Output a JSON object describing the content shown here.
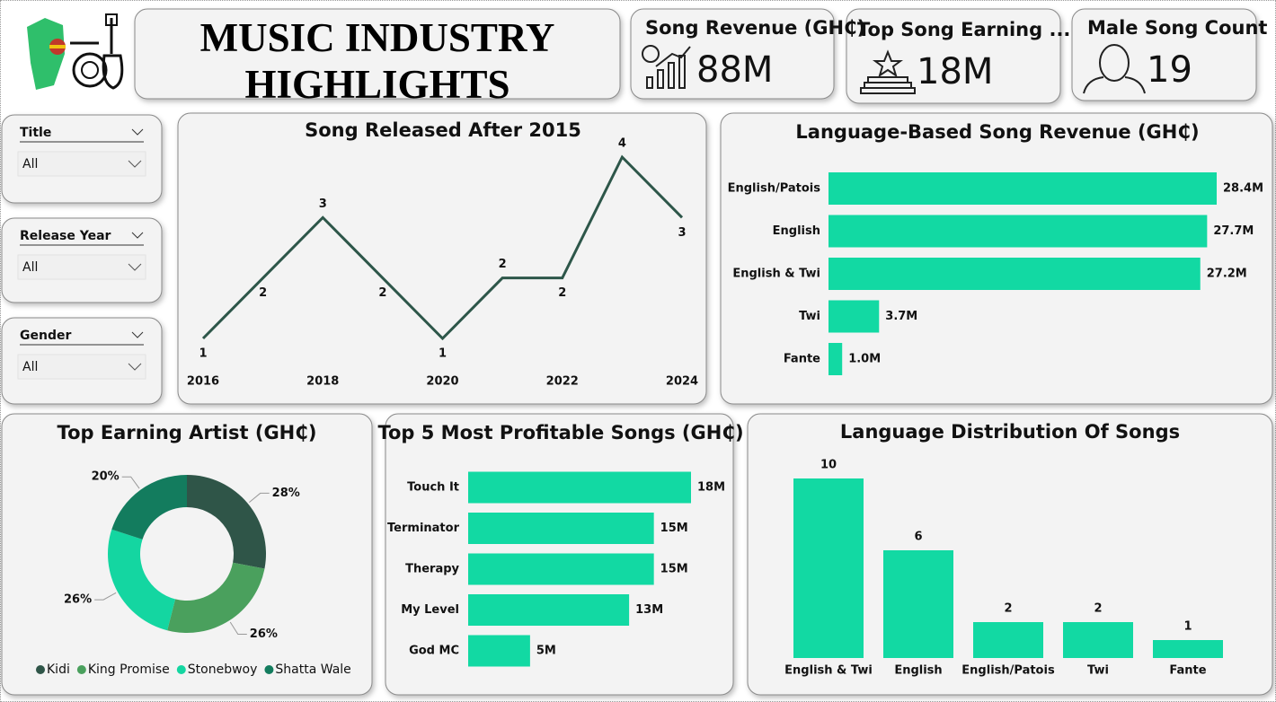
{
  "header": {
    "title": "MUSIC INDUSTRY HIGHLIGHTS"
  },
  "kpis": [
    {
      "label": "Song Revenue (GH₵)",
      "value": "88M"
    },
    {
      "label": "Top Song Earning ...",
      "value": "18M"
    },
    {
      "label": "Male Song Count",
      "value": "19"
    }
  ],
  "filters": [
    {
      "label": "Title",
      "value": "All"
    },
    {
      "label": "Release Year",
      "value": "All"
    },
    {
      "label": "Gender",
      "value": "All"
    }
  ],
  "chart_data": [
    {
      "type": "line",
      "title": "Song Released After 2015",
      "x": [
        2016,
        2017,
        2018,
        2019,
        2020,
        2021,
        2022,
        2023,
        2024
      ],
      "values": [
        1,
        2,
        3,
        2,
        1,
        2,
        2,
        4,
        3
      ],
      "color": "#2d5649",
      "xlim": [
        2016,
        2024
      ],
      "xticks": [
        2016,
        2018,
        2020,
        2022,
        2024
      ]
    },
    {
      "type": "bar",
      "horizontal": true,
      "title": "Language-Based Song Revenue (GH₵)",
      "categories": [
        "English/Patois",
        "English",
        "English & Twi",
        "Twi",
        "Fante"
      ],
      "values": [
        28400000,
        27700000,
        27200000,
        3700000,
        1000000
      ],
      "value_labels": [
        "28.4M",
        "27.7M",
        "27.2M",
        "3.7M",
        "1.0M"
      ],
      "color": "#12d9a3"
    },
    {
      "type": "pie",
      "donut": true,
      "title": "Top Earning Artist (GH₵)",
      "categories": [
        "Kidi",
        "King Promise",
        "Stonebwoy",
        "Shatta Wale"
      ],
      "values": [
        28,
        26,
        26,
        20
      ],
      "value_labels": [
        "28%",
        "26%",
        "26%",
        "20%"
      ],
      "colors": [
        "#2f5548",
        "#4aa05d",
        "#14d6a1",
        "#137c5e"
      ]
    },
    {
      "type": "bar",
      "horizontal": true,
      "title": "Top 5 Most Profitable Songs (GH₵)",
      "categories": [
        "Touch It",
        "Terminator",
        "Therapy",
        "My Level",
        "God MC"
      ],
      "values": [
        18000000,
        15000000,
        15000000,
        13000000,
        5000000
      ],
      "value_labels": [
        "18M",
        "15M",
        "15M",
        "13M",
        "5M"
      ],
      "color": "#12d9a3"
    },
    {
      "type": "bar",
      "title": "Language Distribution Of Songs",
      "categories": [
        "English & Twi",
        "English",
        "English/Patois",
        "Twi",
        "Fante"
      ],
      "values": [
        10,
        6,
        2,
        2,
        1
      ],
      "color": "#12d9a3"
    }
  ]
}
